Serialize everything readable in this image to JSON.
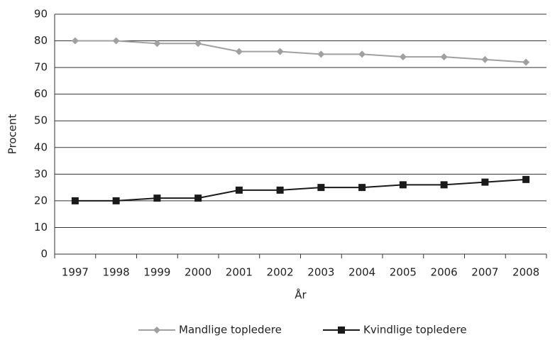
{
  "chart_data": {
    "type": "line",
    "categories": [
      "1997",
      "1998",
      "1999",
      "2000",
      "2001",
      "2002",
      "2003",
      "2004",
      "2005",
      "2006",
      "2007",
      "2008"
    ],
    "series": [
      {
        "name": "Mandlige topledere",
        "color": "#a0a0a0",
        "marker": "diamond",
        "values": [
          80,
          80,
          79,
          79,
          76,
          76,
          75,
          75,
          74,
          74,
          73,
          72
        ]
      },
      {
        "name": "Kvindlige topledere",
        "color": "#1a1a1a",
        "marker": "square",
        "values": [
          20,
          20,
          21,
          21,
          24,
          24,
          25,
          25,
          26,
          26,
          27,
          28
        ]
      }
    ],
    "xlabel": "År",
    "ylabel": "Procent",
    "ylim": [
      0,
      90
    ],
    "yticks": [
      0,
      10,
      20,
      30,
      40,
      50,
      60,
      70,
      80,
      90
    ],
    "grid": true,
    "legend": "bottom"
  }
}
